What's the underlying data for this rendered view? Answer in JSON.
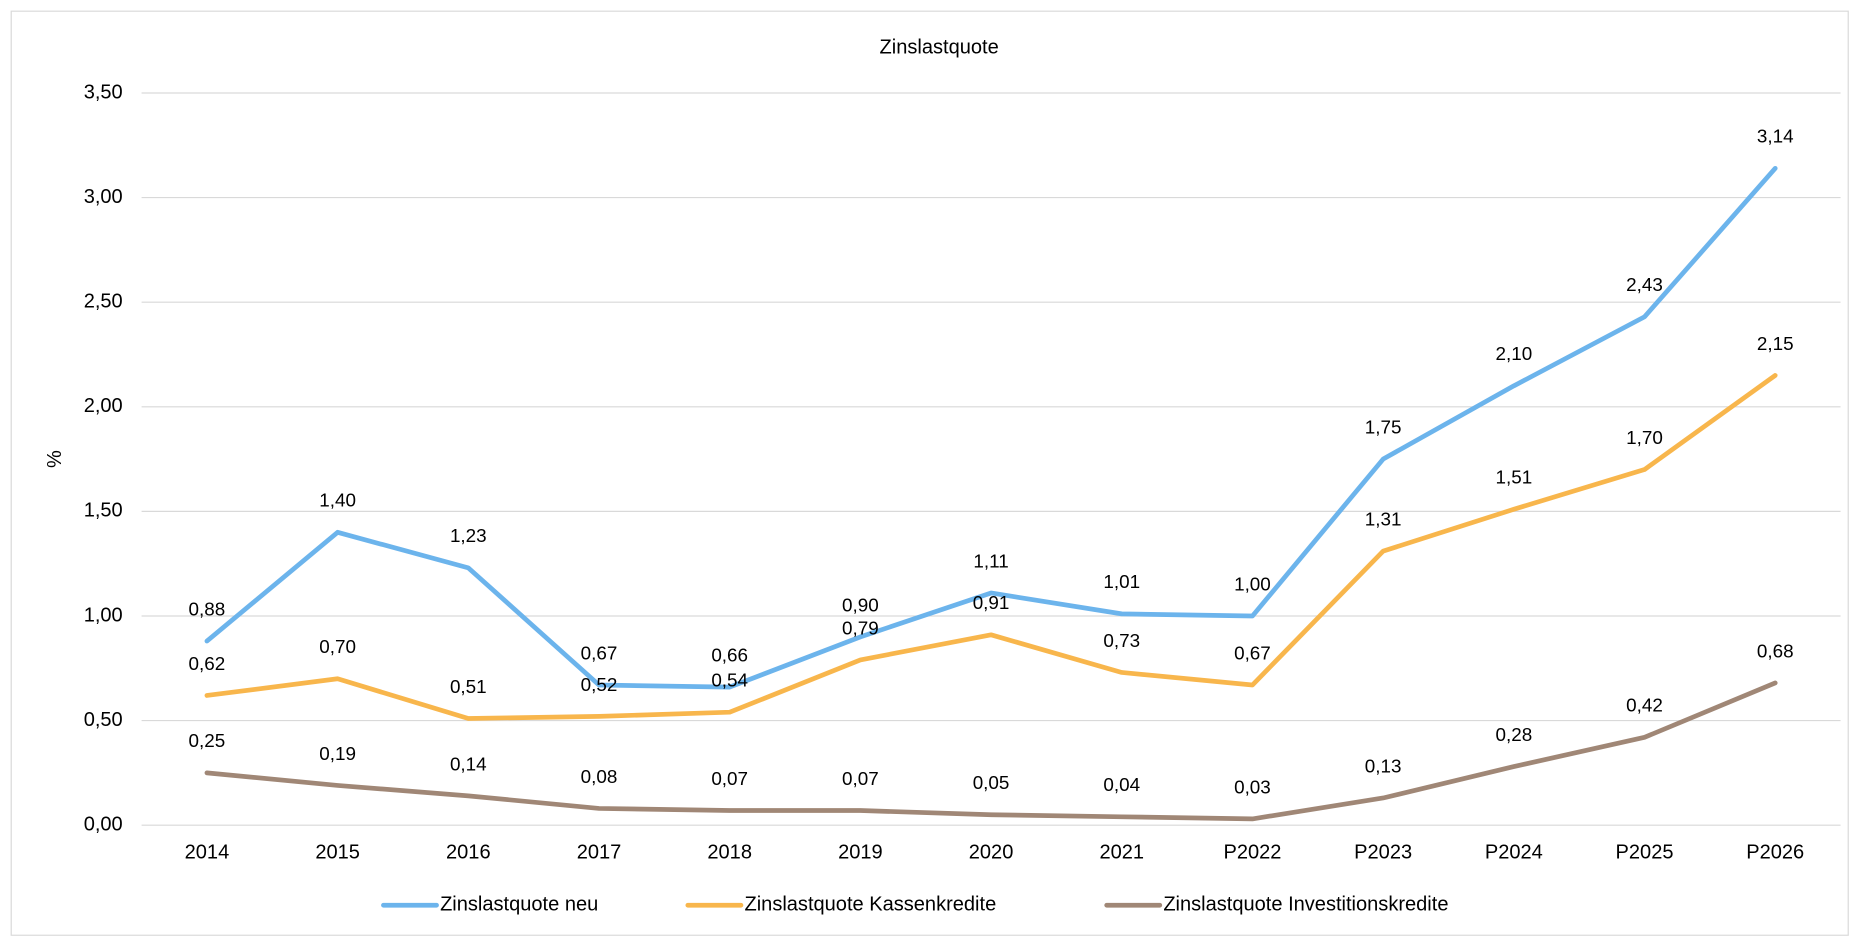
{
  "chart_data": {
    "type": "line",
    "title": "Zinslastquote",
    "y_label": "%",
    "categories": [
      "2014",
      "2015",
      "2016",
      "2017",
      "2018",
      "2019",
      "2020",
      "2021",
      "P2022",
      "P2023",
      "P2024",
      "P2025",
      "P2026"
    ],
    "ylim": [
      0,
      3.5
    ],
    "yticks": [
      {
        "value": 0,
        "label": "0,00"
      },
      {
        "value": 0.5,
        "label": "0,50"
      },
      {
        "value": 1,
        "label": "1,00"
      },
      {
        "value": 1.5,
        "label": "1,50"
      },
      {
        "value": 2,
        "label": "2,00"
      },
      {
        "value": 2.5,
        "label": "2,50"
      },
      {
        "value": 3,
        "label": "3,00"
      },
      {
        "value": 3.5,
        "label": "3,50"
      }
    ],
    "grid": true,
    "legend": "bottom",
    "series": [
      {
        "name": "Zinslastquote neu",
        "color": "#6cb4ec",
        "values": [
          0.88,
          1.4,
          1.23,
          0.67,
          0.66,
          0.9,
          1.11,
          1.01,
          1.0,
          1.75,
          2.1,
          2.43,
          3.14
        ],
        "value_labels": [
          "0,88",
          "1,40",
          "1,23",
          "0,67",
          "0,66",
          "0,90",
          "1,11",
          "1,01",
          "1,00",
          "1,75",
          "2,10",
          "2,43",
          "3,14"
        ]
      },
      {
        "name": "Zinslastquote Kassenkredite",
        "color": "#f8b64c",
        "values": [
          0.62,
          0.7,
          0.51,
          0.52,
          0.54,
          0.79,
          0.91,
          0.73,
          0.67,
          1.31,
          1.51,
          1.7,
          2.15
        ],
        "value_labels": [
          "0,62",
          "0,70",
          "0,51",
          "0,52",
          "0,54",
          "0,79",
          "0,91",
          "0,73",
          "0,67",
          "1,31",
          "1,51",
          "1,70",
          "2,15"
        ]
      },
      {
        "name": "Zinslastquote Investitionskredite",
        "color": "#a08776",
        "values": [
          0.25,
          0.19,
          0.14,
          0.08,
          0.07,
          0.07,
          0.05,
          0.04,
          0.03,
          0.13,
          0.28,
          0.42,
          0.68
        ],
        "value_labels": [
          "0,25",
          "0,19",
          "0,14",
          "0,08",
          "0,07",
          "0,07",
          "0,05",
          "0,04",
          "0,03",
          "0,13",
          "0,28",
          "0,42",
          "0,68"
        ]
      }
    ]
  }
}
